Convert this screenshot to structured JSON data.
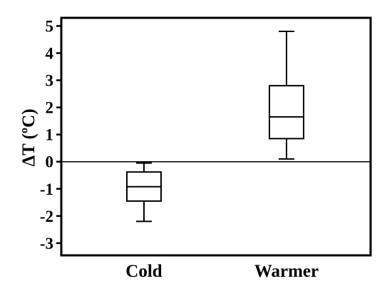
{
  "chart_data": {
    "type": "boxplot",
    "title": "",
    "xlabel": "",
    "ylabel": "ΔT (ºC)",
    "ylim": [
      -3.45,
      5.3
    ],
    "yticks": [
      -3,
      -2,
      -1,
      0,
      1,
      2,
      3,
      4,
      5
    ],
    "reference_line": 0,
    "grid": false,
    "legend": "none",
    "categories": [
      "Cold",
      "Warmer"
    ],
    "boxes": [
      {
        "category": "Cold",
        "min": -2.2,
        "q1": -1.45,
        "median": -0.92,
        "q3": -0.38,
        "max": -0.05
      },
      {
        "category": "Warmer",
        "min": 0.1,
        "q1": 0.85,
        "median": 1.65,
        "q3": 2.8,
        "max": 4.8
      }
    ]
  }
}
